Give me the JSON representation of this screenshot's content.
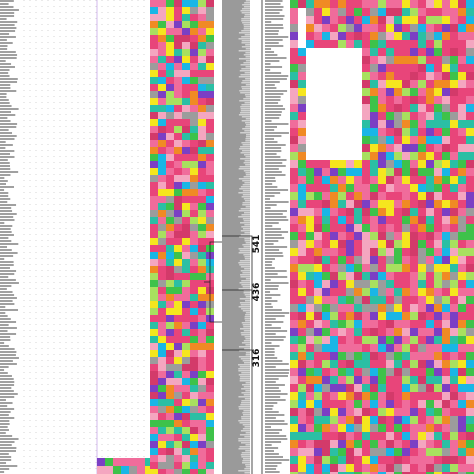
{
  "tree": {
    "node_labels": [
      "541",
      "436",
      "316"
    ]
  }
}
